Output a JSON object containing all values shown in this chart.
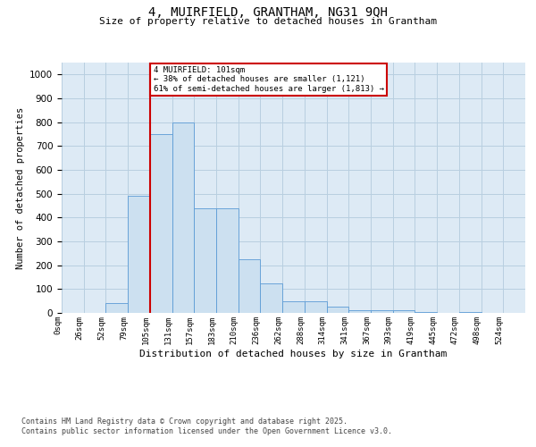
{
  "title": "4, MUIRFIELD, GRANTHAM, NG31 9QH",
  "subtitle": "Size of property relative to detached houses in Grantham",
  "xlabel": "Distribution of detached houses by size in Grantham",
  "ylabel": "Number of detached properties",
  "bin_labels": [
    "0sqm",
    "26sqm",
    "52sqm",
    "79sqm",
    "105sqm",
    "131sqm",
    "157sqm",
    "183sqm",
    "210sqm",
    "236sqm",
    "262sqm",
    "288sqm",
    "314sqm",
    "341sqm",
    "367sqm",
    "393sqm",
    "419sqm",
    "445sqm",
    "472sqm",
    "498sqm",
    "524sqm"
  ],
  "bar_heights": [
    0,
    0,
    40,
    490,
    750,
    800,
    440,
    440,
    225,
    125,
    50,
    50,
    25,
    10,
    10,
    10,
    5,
    0,
    5,
    0,
    0
  ],
  "bar_color": "#cce0f0",
  "bar_edge_color": "#5b9bd5",
  "red_line_x": 4.0,
  "annotation_text": "4 MUIRFIELD: 101sqm\n← 38% of detached houses are smaller (1,121)\n61% of semi-detached houses are larger (1,813) →",
  "annotation_box_color": "#ffffff",
  "annotation_box_edge_color": "#cc0000",
  "ylim": [
    0,
    1050
  ],
  "yticks": [
    0,
    100,
    200,
    300,
    400,
    500,
    600,
    700,
    800,
    900,
    1000
  ],
  "grid_color": "#b8cfe0",
  "background_color": "#ddeaf5",
  "footer_text": "Contains HM Land Registry data © Crown copyright and database right 2025.\nContains public sector information licensed under the Open Government Licence v3.0.",
  "red_line_color": "#cc0000",
  "fig_bg": "#ffffff",
  "title_fontsize": 10,
  "subtitle_fontsize": 8,
  "footer_fontsize": 6,
  "ylabel_fontsize": 7.5,
  "xlabel_fontsize": 8,
  "tick_fontsize": 6.5
}
